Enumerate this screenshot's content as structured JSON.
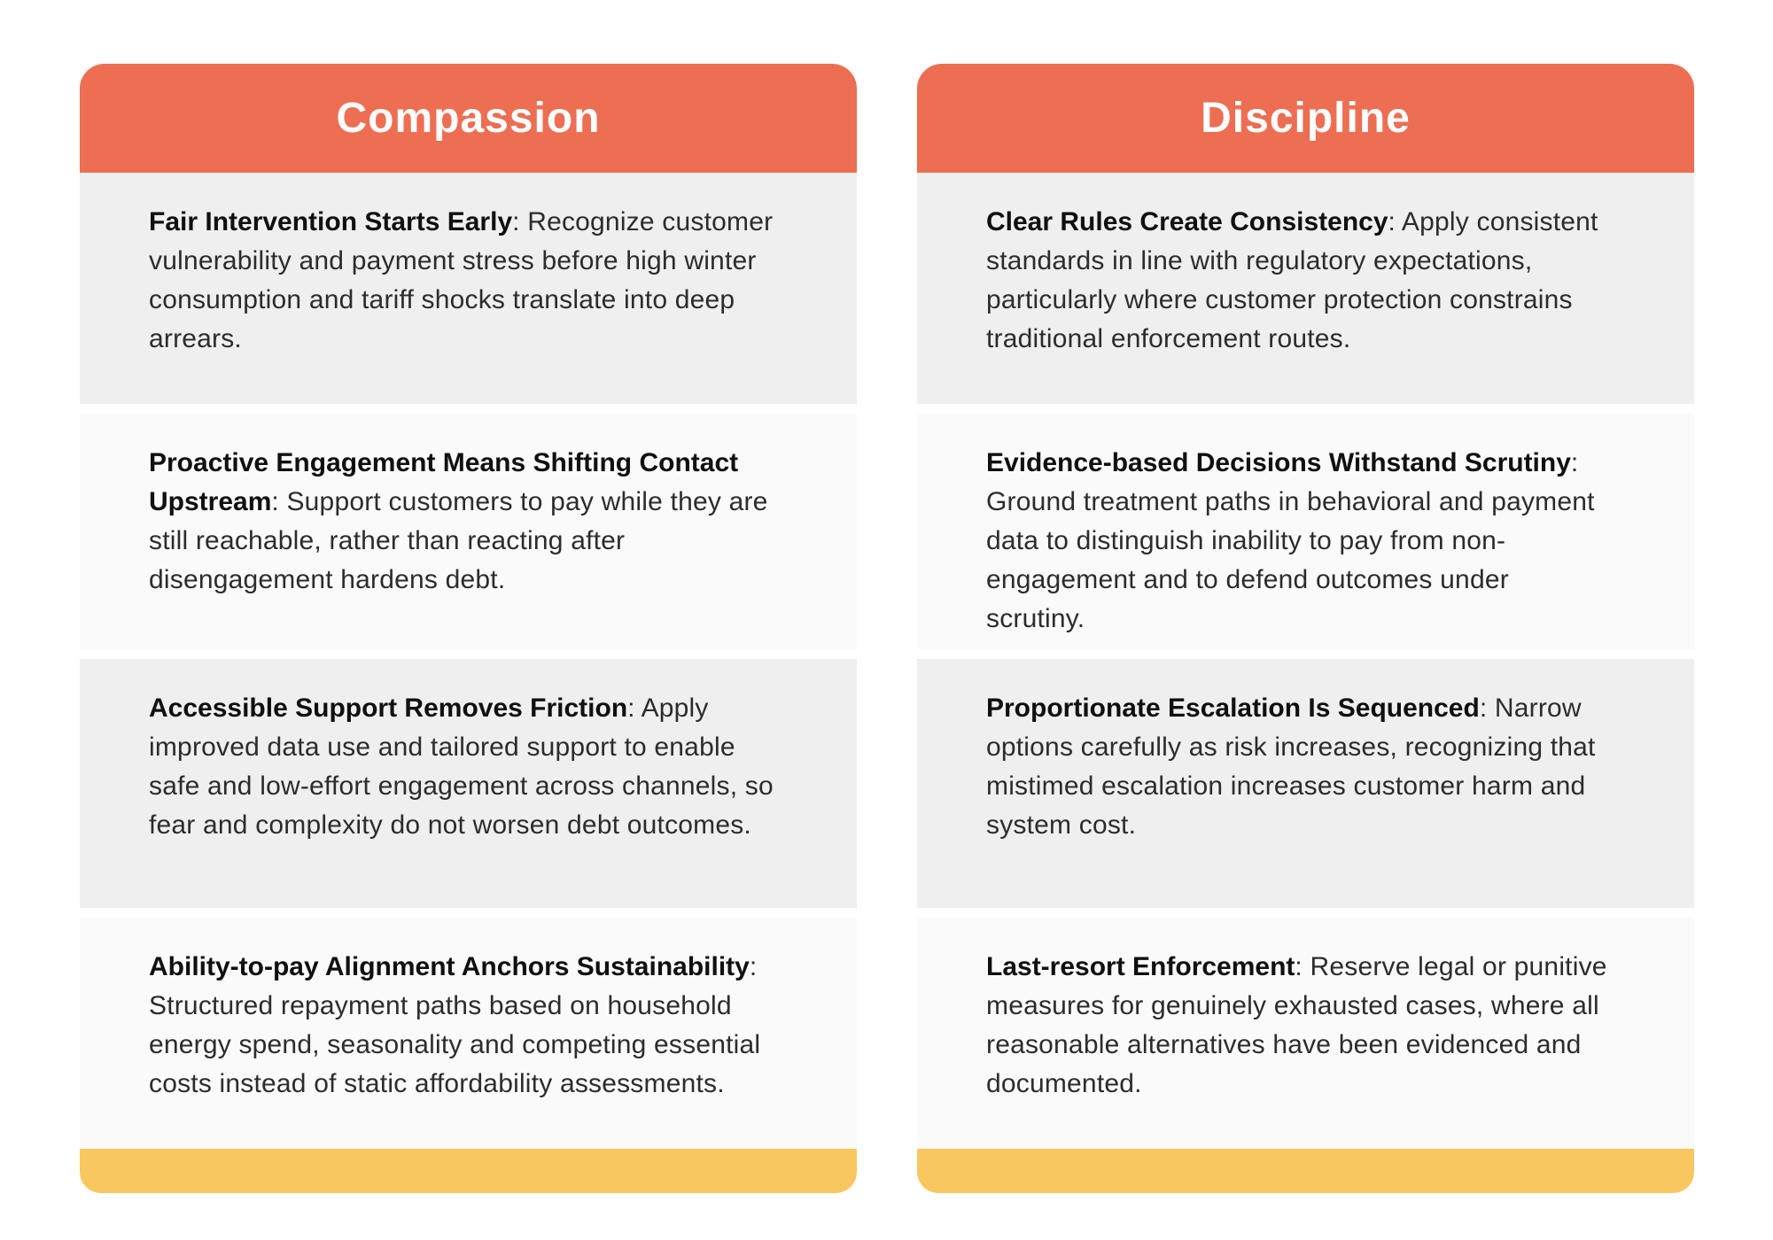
{
  "colors": {
    "header_bg": "#ED6E52",
    "footer_bg": "#F9C75F",
    "row_odd_bg": "#EFEFEF",
    "row_even_bg": "#FAFAFB",
    "title_text": "#FFFFFF",
    "heading_text": "#101010",
    "body_text": "#2C2C2C"
  },
  "cards": [
    {
      "title": "Compassion",
      "items": [
        {
          "heading": "Fair Intervention Starts Early",
          "body": ": Recognize customer vulnerability and payment stress before high winter consumption and tariff shocks translate into deep arrears."
        },
        {
          "heading": "Proactive Engagement Means Shifting Contact Upstream",
          "body": ": Support customers to pay while they are still reachable, rather than reacting after disengagement hardens debt."
        },
        {
          "heading": "Accessible Support Removes Friction",
          "body": ": Apply improved data use and tailored support to enable safe and low-effort engagement across channels, so fear and complexity do not worsen debt outcomes."
        },
        {
          "heading": "Ability-to-pay Alignment Anchors Sustainability",
          "body": ": Structured repayment paths based on household energy spend, seasonality and competing essential costs instead of static affordability assessments."
        }
      ]
    },
    {
      "title": "Discipline",
      "items": [
        {
          "heading": "Clear Rules Create Consistency",
          "body": ": Apply consistent standards in line with regulatory expectations, particularly where customer protection constrains traditional enforcement routes."
        },
        {
          "heading": "Evidence-based Decisions Withstand Scrutiny",
          "body": ": Ground treatment paths in behavioral and payment data to distinguish inability to pay from non-engagement and to defend outcomes under scrutiny."
        },
        {
          "heading": "Proportionate Escalation Is Sequenced",
          "body": ": Narrow options carefully as risk increases, recognizing that mistimed escalation increases customer harm and system cost."
        },
        {
          "heading": "Last-resort Enforcement",
          "body": ": Reserve legal or punitive measures for genuinely exhausted cases, where all reasonable alternatives have been evidenced and documented."
        }
      ]
    }
  ]
}
